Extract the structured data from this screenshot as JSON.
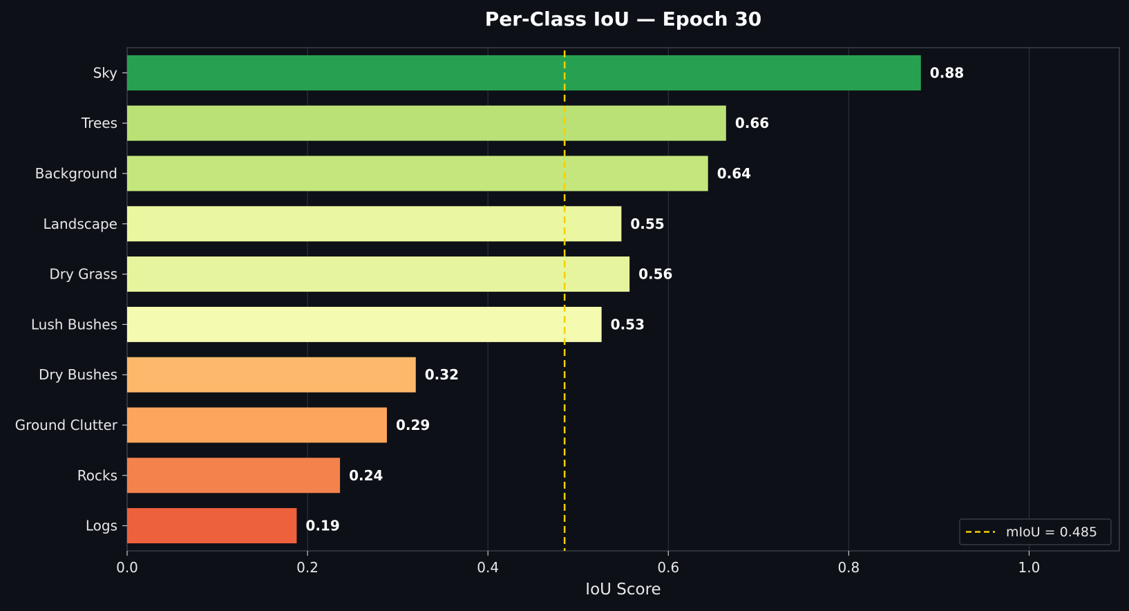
{
  "chart_data": {
    "type": "bar",
    "orientation": "horizontal",
    "title": "Per-Class IoU — Epoch 30",
    "xlabel": "IoU Score",
    "ylabel": "",
    "xlim": [
      0.0,
      1.1
    ],
    "xticks": [
      0.0,
      0.2,
      0.4,
      0.6,
      0.8,
      1.0
    ],
    "xtick_labels": [
      "0.0",
      "0.2",
      "0.4",
      "0.6",
      "0.8",
      "1.0"
    ],
    "grid": true,
    "categories": [
      "Sky",
      "Trees",
      "Background",
      "Landscape",
      "Dry Grass",
      "Lush Bushes",
      "Dry Bushes",
      "Ground Clutter",
      "Rocks",
      "Logs"
    ],
    "values": [
      0.88,
      0.664,
      0.644,
      0.548,
      0.557,
      0.526,
      0.32,
      0.288,
      0.236,
      0.188
    ],
    "value_labels": [
      "0.88",
      "0.66",
      "0.64",
      "0.55",
      "0.56",
      "0.53",
      "0.32",
      "0.29",
      "0.24",
      "0.19"
    ],
    "bar_colors": [
      "#27a151",
      "#b9e176",
      "#c4e67d",
      "#eaf7a0",
      "#e6f59d",
      "#f4fab0",
      "#fdb96b",
      "#fca55d",
      "#f4824c",
      "#ee613d"
    ],
    "reference_line": {
      "value": 0.485,
      "label": "mIoU = 0.485",
      "color": "#f5d000",
      "style": "dashed"
    },
    "legend": {
      "placement": "bottom-right",
      "entries": [
        "mIoU = 0.485"
      ]
    }
  }
}
